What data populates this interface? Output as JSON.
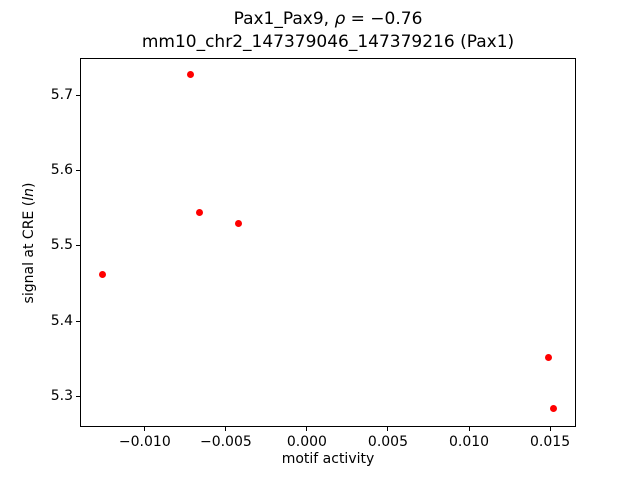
{
  "chart_data": {
    "type": "scatter",
    "title": {
      "line1_segments": [
        {
          "text": "Pax1_Pax9, ",
          "italic": false
        },
        {
          "text": "ρ",
          "italic": true
        },
        {
          "text": " = −0.76",
          "italic": false
        }
      ],
      "line2": "mm10_chr2_147379046_147379216 (Pax1)"
    },
    "xlabel": "motif activity",
    "ylabel_segments": [
      {
        "text": "signal at CRE (",
        "italic": false
      },
      {
        "text": "ln",
        "italic": true
      },
      {
        "text": ")",
        "italic": false
      }
    ],
    "points": [
      {
        "x": -0.0126,
        "y": 5.462
      },
      {
        "x": -0.0072,
        "y": 5.728
      },
      {
        "x": -0.0066,
        "y": 5.545
      },
      {
        "x": -0.0042,
        "y": 5.53
      },
      {
        "x": 0.0149,
        "y": 5.351
      },
      {
        "x": 0.0152,
        "y": 5.283
      }
    ],
    "marker_color": "#ff0000",
    "marker_diameter_px": 7,
    "xlim": [
      -0.014,
      0.0166
    ],
    "ylim": [
      5.259,
      5.75
    ],
    "xticks": [
      -0.01,
      -0.005,
      0.0,
      0.005,
      0.01,
      0.015
    ],
    "xtick_labels": [
      "−0.010",
      "−0.005",
      "0.000",
      "0.005",
      "0.010",
      "0.015"
    ],
    "yticks": [
      5.3,
      5.4,
      5.5,
      5.6,
      5.7
    ],
    "ytick_labels": [
      "5.3",
      "5.4",
      "5.5",
      "5.6",
      "5.7"
    ],
    "grid": false,
    "legend": null
  }
}
